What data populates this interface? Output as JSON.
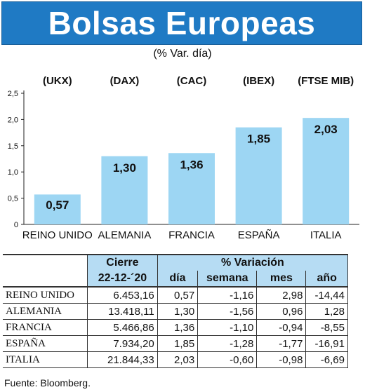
{
  "title": "Bolsas Europeas",
  "subtitle": "(% Var. día)",
  "chart_data": {
    "type": "bar",
    "categories": [
      "REINO UNIDO",
      "ALEMANIA",
      "FRANCIA",
      "ESPAÑA",
      "ITALIA"
    ],
    "index_labels": [
      "(UKX)",
      "(DAX)",
      "(CAC)",
      "(IBEX)",
      "(FTSE MIB)"
    ],
    "values": [
      0.57,
      1.3,
      1.36,
      1.85,
      2.03
    ],
    "value_labels": [
      "0,57",
      "1,30",
      "1,36",
      "1,85",
      "2,03"
    ],
    "yticks": [
      "0",
      "0,5",
      "1,0",
      "1,5",
      "2,0",
      "2,5"
    ],
    "ylim": [
      0,
      2.5
    ],
    "bar_color": "#9dd6f3"
  },
  "table": {
    "header_cierre": "Cierre",
    "header_variacion": "% Variación",
    "header_date": "22-12-´20",
    "col_dia": "día",
    "col_semana": "semana",
    "col_mes": "mes",
    "col_ano": "año",
    "rows": [
      {
        "name": "REINO UNIDO",
        "cierre": "6.453,16",
        "dia": "0,57",
        "semana": "-1,16",
        "mes": "2,98",
        "ano": "-14,44"
      },
      {
        "name": "ALEMANIA",
        "cierre": "13.418,11",
        "dia": "1,30",
        "semana": "-1,56",
        "mes": "0,96",
        "ano": "1,28"
      },
      {
        "name": "FRANCIA",
        "cierre": "5.466,86",
        "dia": "1,36",
        "semana": "-1,10",
        "mes": "-0,94",
        "ano": "-8,55"
      },
      {
        "name": "ESPAÑA",
        "cierre": "7.934,20",
        "dia": "1,85",
        "semana": "-1,28",
        "mes": "-1,77",
        "ano": "-16,91"
      },
      {
        "name": "ITALIA",
        "cierre": "21.844,33",
        "dia": "2,03",
        "semana": "-0,60",
        "mes": "-0,98",
        "ano": "-6,69"
      }
    ]
  },
  "source": "Fuente: Bloomberg."
}
